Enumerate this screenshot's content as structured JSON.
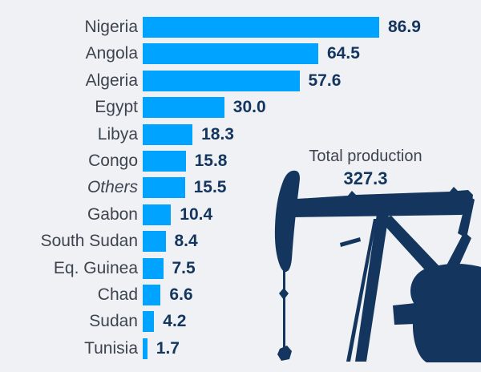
{
  "colors": {
    "background": "#eff1f4",
    "bar": "#00a3ff",
    "category_label": "#3d4450",
    "value_label": "#14365e",
    "pumpjack": "#14365e"
  },
  "chart_data": {
    "type": "bar",
    "orientation": "horizontal",
    "title": "",
    "xlabel": "",
    "ylabel": "",
    "categories": [
      "Nigeria",
      "Angola",
      "Algeria",
      "Egypt",
      "Libya",
      "Congo",
      "Others",
      "Gabon",
      "South Sudan",
      "Eq. Guinea",
      "Chad",
      "Sudan",
      "Tunisia"
    ],
    "values": [
      86.9,
      64.5,
      57.6,
      30.0,
      18.3,
      15.8,
      15.5,
      10.4,
      8.4,
      7.5,
      6.6,
      4.2,
      1.7
    ],
    "italic_categories": [
      "Others"
    ],
    "value_label_decimals": 1,
    "xlim": [
      0,
      90
    ],
    "grid": false,
    "legend": "none",
    "annotation": {
      "label": "Total production",
      "value": "327.3"
    },
    "illustration": "oil-pumpjack-silhouette"
  }
}
